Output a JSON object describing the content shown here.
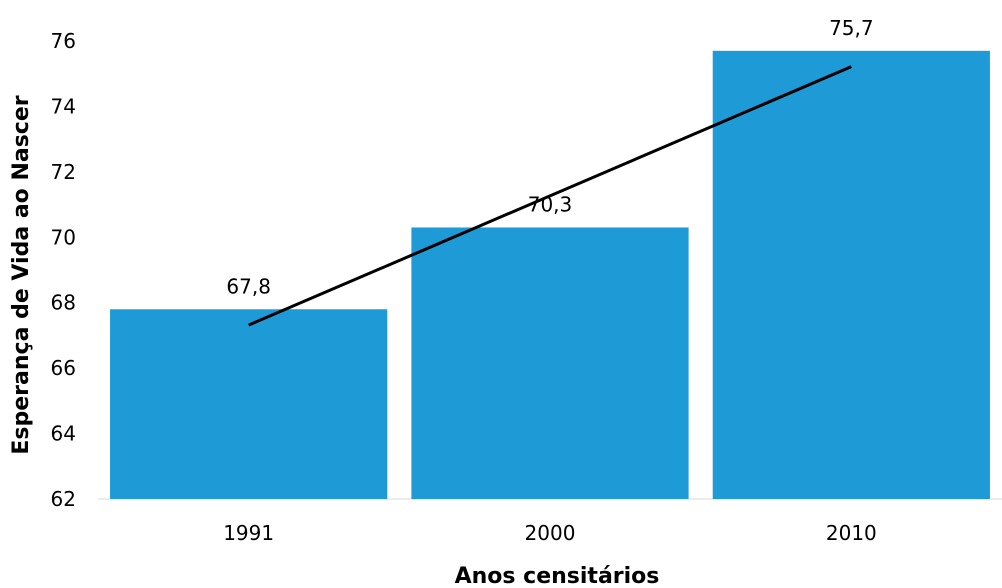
{
  "chart_data": {
    "type": "bar",
    "categories": [
      "1991",
      "2000",
      "2010"
    ],
    "values": [
      67.8,
      70.3,
      75.7
    ],
    "value_labels": [
      "67,8",
      "70,3",
      "75,7"
    ],
    "title": "",
    "xlabel": "Anos censitários",
    "ylabel": "Esperança de Vida ao Nascer",
    "ylim": [
      62,
      76
    ],
    "yticks": [
      "62",
      "64",
      "66",
      "68",
      "70",
      "72",
      "74",
      "76"
    ],
    "trendline": {
      "type": "linear",
      "color": "#000000"
    },
    "grid": false,
    "legend": "none",
    "bar_color": "#1e9bd7"
  }
}
